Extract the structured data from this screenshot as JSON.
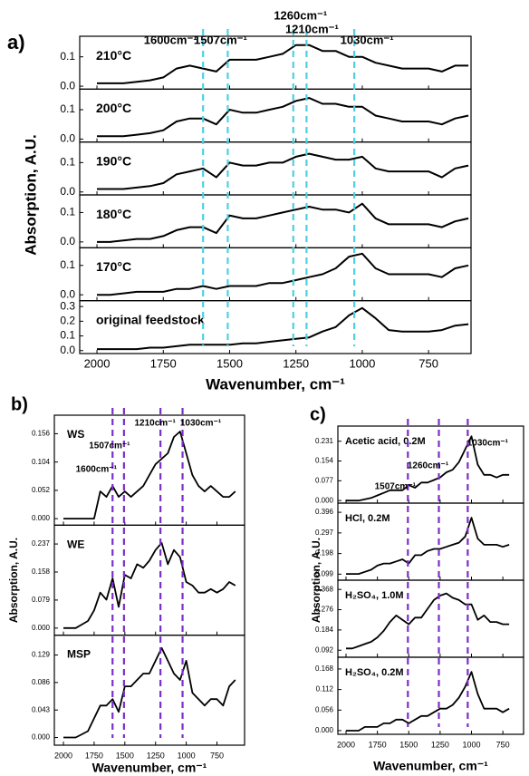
{
  "chart_data": [
    {
      "type": "line",
      "panel_label": "a)",
      "x_label": "Wavenumber, cm⁻¹",
      "y_label": "Absorption, A.U.",
      "x": [
        2000,
        1950,
        1900,
        1850,
        1800,
        1750,
        1700,
        1650,
        1600,
        1550,
        1500,
        1450,
        1400,
        1350,
        1300,
        1250,
        1200,
        1150,
        1100,
        1050,
        1000,
        950,
        900,
        850,
        800,
        750,
        700,
        650,
        600
      ],
      "xlim": [
        2065,
        590
      ],
      "xticks": [
        2000,
        1750,
        1500,
        1250,
        1000,
        750
      ],
      "annotation_color": "#4dd0e1",
      "annotations": [
        {
          "x": 1600,
          "label": "1600cm⁻¹"
        },
        {
          "x": 1507,
          "label": "1507cm⁻¹"
        },
        {
          "x": 1260,
          "label": "1260cm⁻¹"
        },
        {
          "x": 1210,
          "label": "1210cm⁻¹"
        },
        {
          "x": 1030,
          "label": "1030cm⁻¹"
        }
      ],
      "series": [
        {
          "name": "210°C",
          "color": "#000000",
          "ylim": [
            -0.01,
            0.17
          ],
          "yticks": [
            {
              "value": 0,
              "label": "0.0"
            },
            0.1
          ],
          "values": [
            0.01,
            0.01,
            0.01,
            0.015,
            0.02,
            0.03,
            0.06,
            0.07,
            0.06,
            0.05,
            0.09,
            0.09,
            0.09,
            0.1,
            0.11,
            0.14,
            0.14,
            0.12,
            0.12,
            0.1,
            0.1,
            0.08,
            0.07,
            0.06,
            0.06,
            0.06,
            0.05,
            0.07,
            0.07
          ]
        },
        {
          "name": "200°C",
          "color": "#000000",
          "ylim": [
            -0.01,
            0.17
          ],
          "yticks": [
            {
              "value": 0,
              "label": "0.0"
            },
            0.1
          ],
          "values": [
            0.01,
            0.01,
            0.01,
            0.015,
            0.02,
            0.03,
            0.06,
            0.07,
            0.07,
            0.05,
            0.1,
            0.09,
            0.09,
            0.1,
            0.11,
            0.13,
            0.14,
            0.12,
            0.12,
            0.11,
            0.11,
            0.08,
            0.07,
            0.06,
            0.06,
            0.06,
            0.05,
            0.07,
            0.08
          ]
        },
        {
          "name": "190°C",
          "color": "#000000",
          "ylim": [
            -0.01,
            0.17
          ],
          "yticks": [
            {
              "value": 0,
              "label": "0.0"
            },
            0.1
          ],
          "values": [
            0.01,
            0.01,
            0.01,
            0.015,
            0.02,
            0.03,
            0.06,
            0.07,
            0.08,
            0.05,
            0.1,
            0.09,
            0.09,
            0.1,
            0.1,
            0.12,
            0.13,
            0.12,
            0.11,
            0.11,
            0.12,
            0.08,
            0.07,
            0.07,
            0.07,
            0.07,
            0.05,
            0.08,
            0.09
          ]
        },
        {
          "name": "180°C",
          "color": "#000000",
          "ylim": [
            -0.02,
            0.16
          ],
          "yticks": [
            {
              "value": 0,
              "label": "0.0"
            },
            0.1
          ],
          "values": [
            0,
            0,
            0.005,
            0.01,
            0.01,
            0.02,
            0.04,
            0.05,
            0.05,
            0.03,
            0.09,
            0.08,
            0.08,
            0.09,
            0.1,
            0.11,
            0.12,
            0.11,
            0.11,
            0.1,
            0.13,
            0.08,
            0.06,
            0.06,
            0.06,
            0.06,
            0.05,
            0.07,
            0.08
          ]
        },
        {
          "name": "170°C",
          "color": "#000000",
          "ylim": [
            -0.02,
            0.16
          ],
          "yticks": [
            {
              "value": 0,
              "label": "0.0"
            },
            0.1
          ],
          "values": [
            0,
            0,
            0.005,
            0.01,
            0.01,
            0.01,
            0.02,
            0.02,
            0.03,
            0.02,
            0.03,
            0.03,
            0.03,
            0.04,
            0.04,
            0.05,
            0.06,
            0.07,
            0.09,
            0.13,
            0.14,
            0.09,
            0.07,
            0.07,
            0.07,
            0.07,
            0.06,
            0.09,
            0.1
          ]
        },
        {
          "name": "original feedstock",
          "color": "#000000",
          "ylim": [
            -0.02,
            0.34
          ],
          "yticks": [
            {
              "value": 0,
              "label": "0.0"
            },
            0.1,
            0.2,
            0.3
          ],
          "values": [
            0.01,
            0.01,
            0.01,
            0.01,
            0.02,
            0.02,
            0.03,
            0.04,
            0.04,
            0.04,
            0.04,
            0.05,
            0.05,
            0.06,
            0.07,
            0.08,
            0.09,
            0.13,
            0.16,
            0.24,
            0.29,
            0.22,
            0.14,
            0.13,
            0.13,
            0.13,
            0.14,
            0.17,
            0.18
          ]
        }
      ]
    },
    {
      "type": "line",
      "panel_label": "b)",
      "x_label": "Wavenumber, cm⁻¹",
      "y_label": "Absorption, A.U.",
      "x": [
        2000,
        1950,
        1900,
        1850,
        1800,
        1750,
        1700,
        1650,
        1600,
        1550,
        1500,
        1450,
        1400,
        1350,
        1300,
        1250,
        1200,
        1150,
        1100,
        1050,
        1000,
        950,
        900,
        850,
        800,
        750,
        700,
        650,
        600
      ],
      "xlim": [
        2074,
        525
      ],
      "xticks": [
        2000,
        1750,
        1500,
        1250,
        1000,
        750
      ],
      "annotation_color": "#7b2fc9",
      "annotations": [
        {
          "x": 1600,
          "label": "1600cm⁻¹"
        },
        {
          "x": 1507,
          "label": "1507cm⁻¹"
        },
        {
          "x": 1210,
          "label": "1210cm⁻¹"
        },
        {
          "x": 1030,
          "label": "1030cm⁻¹"
        }
      ],
      "series": [
        {
          "name": "WS",
          "color": "#000000",
          "ylim": [
            -0.012,
            0.19
          ],
          "yticks": [
            {
              "value": 0,
              "label": "0.000"
            },
            0.052,
            0.104,
            0.156
          ],
          "values": [
            0,
            0,
            0,
            0,
            0,
            0,
            0.05,
            0.04,
            0.06,
            0.04,
            0.05,
            0.04,
            0.05,
            0.06,
            0.08,
            0.1,
            0.11,
            0.12,
            0.15,
            0.16,
            0.12,
            0.08,
            0.06,
            0.05,
            0.06,
            0.05,
            0.04,
            0.04,
            0.05
          ]
        },
        {
          "name": "WE",
          "color": "#000000",
          "ylim": [
            -0.02,
            0.29
          ],
          "yticks": [
            {
              "value": 0,
              "label": "0.000"
            },
            0.079,
            0.158,
            0.237
          ],
          "values": [
            0,
            0,
            0,
            0.01,
            0.02,
            0.05,
            0.1,
            0.08,
            0.14,
            0.06,
            0.15,
            0.14,
            0.18,
            0.17,
            0.19,
            0.22,
            0.24,
            0.18,
            0.22,
            0.2,
            0.13,
            0.12,
            0.1,
            0.1,
            0.11,
            0.1,
            0.11,
            0.13,
            0.12
          ]
        },
        {
          "name": "MSP",
          "color": "#000000",
          "ylim": [
            -0.012,
            0.16
          ],
          "yticks": [
            {
              "value": 0,
              "label": "0.000"
            },
            0.043,
            0.086,
            0.129
          ],
          "values": [
            0,
            0,
            0,
            0.005,
            0.01,
            0.03,
            0.05,
            0.05,
            0.06,
            0.04,
            0.08,
            0.08,
            0.09,
            0.1,
            0.1,
            0.12,
            0.14,
            0.12,
            0.1,
            0.09,
            0.12,
            0.07,
            0.06,
            0.05,
            0.06,
            0.06,
            0.05,
            0.08,
            0.09
          ]
        }
      ]
    },
    {
      "type": "line",
      "panel_label": "c)",
      "x_label": "Wavenumber, cm⁻¹",
      "y_label": "Absorption, A.U.",
      "x": [
        2000,
        1950,
        1900,
        1850,
        1800,
        1750,
        1700,
        1650,
        1600,
        1550,
        1500,
        1450,
        1400,
        1350,
        1300,
        1250,
        1200,
        1150,
        1100,
        1050,
        1000,
        950,
        900,
        850,
        800,
        750,
        700
      ],
      "xlim": [
        2065,
        585
      ],
      "xticks": [
        2000,
        1750,
        1500,
        1250,
        1000,
        750
      ],
      "annotation_color": "#7b2fc9",
      "annotations": [
        {
          "x": 1507,
          "label": "1507cm⁻¹"
        },
        {
          "x": 1260,
          "label": "1260cm⁻¹"
        },
        {
          "x": 1030,
          "label": "1030cm⁻¹"
        }
      ],
      "series": [
        {
          "name": "Acetic acid, 0.2M",
          "color": "#000000",
          "ylim": [
            -0.01,
            0.29
          ],
          "yticks": [
            {
              "value": 0,
              "label": "0.000"
            },
            0.077,
            0.154,
            0.231
          ],
          "values": [
            0,
            0,
            0,
            0.005,
            0.01,
            0.02,
            0.03,
            0.04,
            0.04,
            0.04,
            0.06,
            0.05,
            0.07,
            0.07,
            0.08,
            0.09,
            0.11,
            0.12,
            0.15,
            0.2,
            0.25,
            0.14,
            0.1,
            0.1,
            0.09,
            0.1,
            0.1
          ]
        },
        {
          "name": "HCl, 0.2M",
          "color": "#000000",
          "ylim": [
            0.07,
            0.44
          ],
          "yticks": [
            0.099,
            0.198,
            0.297,
            0.396
          ],
          "values": [
            0.1,
            0.1,
            0.1,
            0.11,
            0.12,
            0.14,
            0.15,
            0.15,
            0.16,
            0.17,
            0.15,
            0.19,
            0.19,
            0.21,
            0.22,
            0.22,
            0.23,
            0.24,
            0.25,
            0.28,
            0.37,
            0.27,
            0.24,
            0.24,
            0.24,
            0.23,
            0.24
          ]
        },
        {
          "name": "H₂SO₄, 1.0M",
          "color": "#000000",
          "ylim": [
            0.06,
            0.41
          ],
          "yticks": [
            0.092,
            0.184,
            0.276,
            0.368
          ],
          "values": [
            0.1,
            0.1,
            0.11,
            0.12,
            0.13,
            0.15,
            0.18,
            0.22,
            0.25,
            0.23,
            0.21,
            0.24,
            0.24,
            0.28,
            0.32,
            0.34,
            0.35,
            0.33,
            0.32,
            0.3,
            0.3,
            0.23,
            0.25,
            0.22,
            0.22,
            0.21,
            0.21
          ]
        },
        {
          "name": "H₂SO₄, 0.2M",
          "color": "#000000",
          "ylim": [
            -0.01,
            0.2
          ],
          "yticks": [
            {
              "value": 0,
              "label": "0.000"
            },
            0.056,
            0.112,
            0.168
          ],
          "values": [
            0,
            0,
            0,
            0.01,
            0.01,
            0.01,
            0.02,
            0.02,
            0.03,
            0.03,
            0.02,
            0.03,
            0.04,
            0.04,
            0.05,
            0.06,
            0.06,
            0.07,
            0.09,
            0.12,
            0.16,
            0.1,
            0.06,
            0.06,
            0.06,
            0.05,
            0.06
          ]
        }
      ]
    }
  ]
}
